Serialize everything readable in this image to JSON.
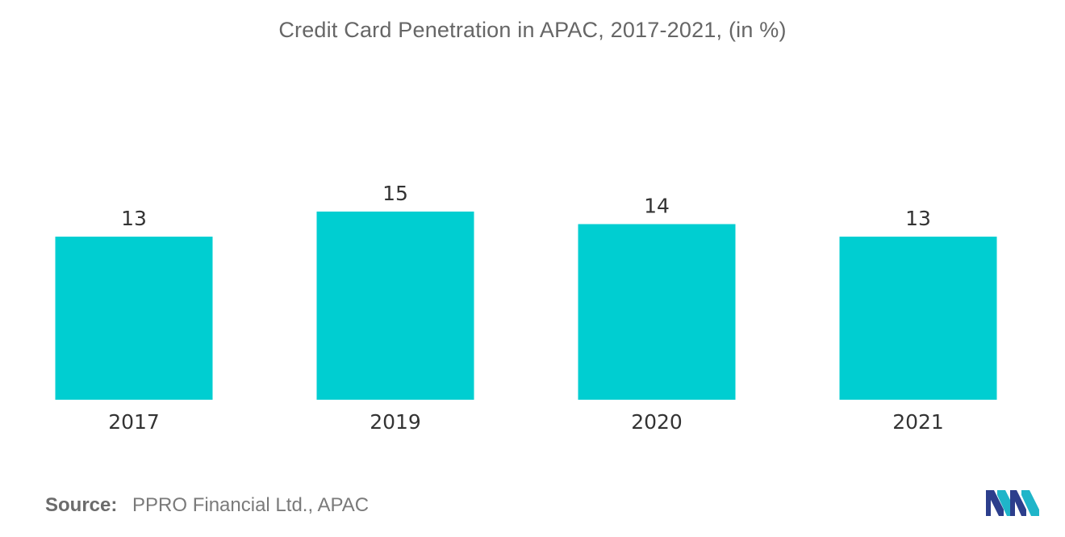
{
  "chart_data": {
    "type": "bar",
    "title": "Credit Card Penetration in APAC, 2017-2021, (in %)",
    "xlabel": "",
    "ylabel": "",
    "categories": [
      "2017",
      "2019",
      "2020",
      "2021"
    ],
    "values": [
      13,
      15,
      14,
      13
    ],
    "data_labels": [
      "13",
      "15",
      "14",
      "13"
    ],
    "ylim": [
      0,
      15
    ],
    "grid": false,
    "legend": "none",
    "bar_color": "#00CED1"
  },
  "source": {
    "label": "Source:",
    "text": "PPRO Financial Ltd., APAC"
  },
  "logo": {
    "icon": "mordor-intelligence-logo",
    "colors": [
      "#2C3E8C",
      "#1FB5C9"
    ]
  }
}
